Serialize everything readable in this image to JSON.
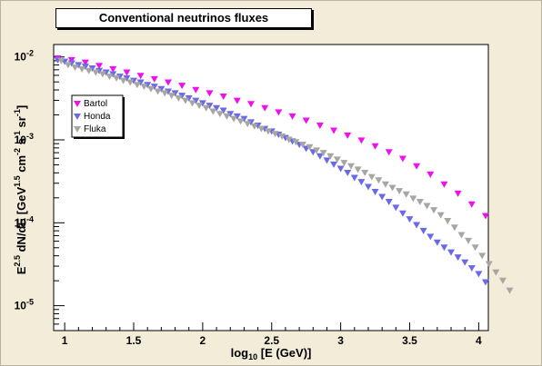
{
  "chart_data": {
    "type": "scatter",
    "title": "Conventional neutrinos fluxes",
    "xlabel": {
      "pre": "log",
      "sub": "10",
      "post": " [E (GeV)]"
    },
    "ylabel": {
      "parts": [
        [
          "E",
          ""
        ],
        [
          "2.5",
          "sup"
        ],
        [
          " dN/dE [GeV",
          ""
        ],
        [
          "1.5",
          "sup"
        ],
        [
          " cm",
          ""
        ],
        [
          "-2",
          "sup"
        ],
        [
          " s",
          ""
        ],
        [
          "-1",
          "sup"
        ],
        [
          " sr",
          ""
        ],
        [
          "-1",
          "sup"
        ],
        [
          "]",
          ""
        ]
      ]
    },
    "xlim": [
      0.92,
      4.07
    ],
    "ylim_log10": [
      -5.3,
      -1.85
    ],
    "y_scale": "log",
    "grid": false,
    "legend_position": "top-left",
    "x_ticks": [
      1,
      1.5,
      2,
      2.5,
      3,
      3.5,
      4
    ],
    "x_tick_labels": [
      "1",
      "1.5",
      "2",
      "2.5",
      "3",
      "3.5",
      "4"
    ],
    "y_ticks_exp": [
      -5,
      -4,
      -3,
      -2
    ],
    "y_tick_labels": [
      {
        "base": "10",
        "exp": "-5"
      },
      {
        "base": "10",
        "exp": "-4"
      },
      {
        "base": "10",
        "exp": "-3"
      },
      {
        "base": "10",
        "exp": "-2"
      }
    ],
    "series": [
      {
        "name": "Bartol",
        "color": "#ee11ee",
        "marker": "triangle-down",
        "x_start": 0.95,
        "x_step": 0.1,
        "log10_y": [
          -2.02,
          -2.04,
          -2.07,
          -2.11,
          -2.15,
          -2.19,
          -2.23,
          -2.27,
          -2.31,
          -2.35,
          -2.4,
          -2.44,
          -2.48,
          -2.53,
          -2.57,
          -2.62,
          -2.67,
          -2.72,
          -2.77,
          -2.83,
          -2.89,
          -2.95,
          -3.01,
          -3.08,
          -3.15,
          -3.23,
          -3.32,
          -3.42,
          -3.54,
          -3.65,
          -3.78,
          -3.92
        ]
      },
      {
        "name": "Honda",
        "color": "#6a6ae8",
        "marker": "triangle-down",
        "x_start": 0.95,
        "x_step": 0.05,
        "log10_y": [
          -2.04,
          -2.06,
          -2.08,
          -2.1,
          -2.12,
          -2.14,
          -2.17,
          -2.19,
          -2.21,
          -2.24,
          -2.26,
          -2.29,
          -2.31,
          -2.34,
          -2.36,
          -2.39,
          -2.42,
          -2.44,
          -2.47,
          -2.5,
          -2.53,
          -2.56,
          -2.59,
          -2.62,
          -2.65,
          -2.69,
          -2.72,
          -2.75,
          -2.79,
          -2.83,
          -2.87,
          -2.9,
          -2.94,
          -2.98,
          -3.02,
          -3.06,
          -3.11,
          -3.15,
          -3.2,
          -3.25,
          -3.3,
          -3.35,
          -3.4,
          -3.46,
          -3.51,
          -3.57,
          -3.63,
          -3.69,
          -3.75,
          -3.82,
          -3.89,
          -3.96,
          -4.03,
          -4.1,
          -4.17,
          -4.24,
          -4.3,
          -4.36,
          -4.42,
          -4.48,
          -4.55,
          -4.62,
          -4.72
        ]
      },
      {
        "name": "Fluka",
        "color": "#a8a6a0",
        "marker": "triangle-down",
        "x_start": 0.975,
        "x_step": 0.05,
        "log10_y": [
          -2.05,
          -2.1,
          -2.13,
          -2.15,
          -2.17,
          -2.19,
          -2.21,
          -2.24,
          -2.26,
          -2.29,
          -2.31,
          -2.34,
          -2.36,
          -2.39,
          -2.42,
          -2.44,
          -2.47,
          -2.5,
          -2.53,
          -2.56,
          -2.59,
          -2.62,
          -2.66,
          -2.69,
          -2.72,
          -2.75,
          -2.78,
          -2.81,
          -2.84,
          -2.87,
          -2.9,
          -2.93,
          -2.96,
          -3.0,
          -3.03,
          -3.06,
          -3.09,
          -3.13,
          -3.16,
          -3.2,
          -3.24,
          -3.28,
          -3.32,
          -3.36,
          -3.4,
          -3.45,
          -3.49,
          -3.54,
          -3.58,
          -3.62,
          -3.66,
          -3.71,
          -3.75,
          -3.8,
          -3.85,
          -3.91,
          -3.98,
          -4.06,
          -4.15,
          -4.22,
          -4.3,
          -4.4,
          -4.5,
          -4.6,
          -4.7,
          -4.82
        ]
      }
    ]
  }
}
